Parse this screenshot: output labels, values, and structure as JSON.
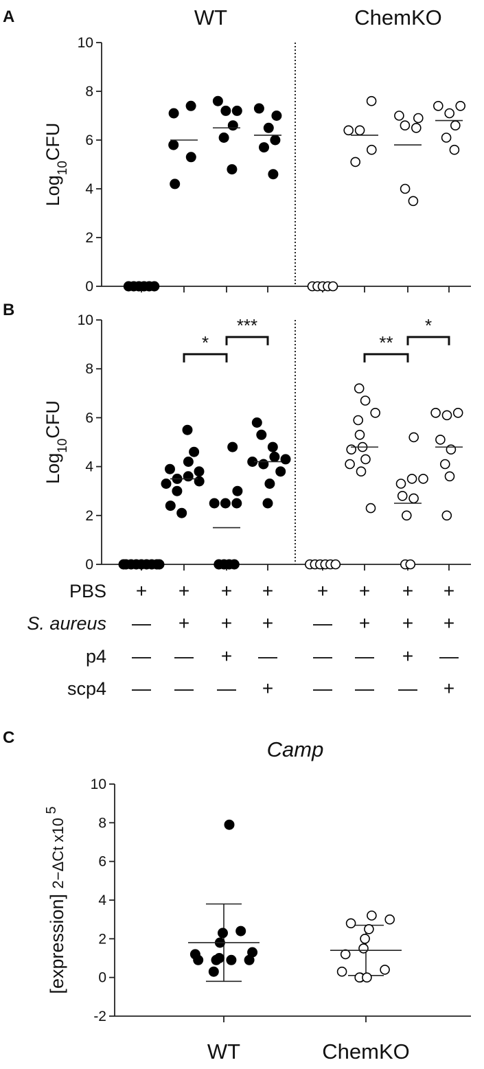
{
  "panels": {
    "A": "A",
    "B": "B",
    "C": "C"
  },
  "group_titles": [
    "WT",
    "ChemKO"
  ],
  "conditions": {
    "labels": [
      "PBS",
      "S. aureus",
      "p4",
      "scp4"
    ],
    "rows": [
      [
        "+",
        "+",
        "+",
        "+",
        "+",
        "+",
        "+",
        "+"
      ],
      [
        "—",
        "+",
        "+",
        "+",
        "—",
        "+",
        "+",
        "+"
      ],
      [
        "—",
        "—",
        "+",
        "—",
        "—",
        "—",
        "+",
        "—"
      ],
      [
        "—",
        "—",
        "—",
        "+",
        "—",
        "—",
        "—",
        "+"
      ]
    ]
  },
  "chart_data": [
    {
      "panel": "A",
      "type": "scatter",
      "ylabel": "Log10CFU",
      "ylim": [
        0,
        10
      ],
      "yticks": [
        0,
        2,
        4,
        6,
        8,
        10
      ],
      "groups": [
        "WT",
        "ChemKO"
      ],
      "series": [
        {
          "genotype": "WT",
          "marker": "filled",
          "points": [
            0,
            0,
            0,
            0,
            0,
            0
          ],
          "mean": 0
        },
        {
          "genotype": "WT",
          "marker": "filled",
          "points": [
            7.4,
            7.1,
            5.8,
            5.3,
            4.2
          ],
          "mean": 6.0
        },
        {
          "genotype": "WT",
          "marker": "filled",
          "points": [
            7.6,
            7.2,
            7.2,
            6.6,
            6.1,
            4.8
          ],
          "mean": 6.5
        },
        {
          "genotype": "WT",
          "marker": "filled",
          "points": [
            7.3,
            7.0,
            6.5,
            6.0,
            5.7,
            4.6
          ],
          "mean": 6.2
        },
        {
          "genotype": "ChemKO",
          "marker": "open",
          "points": [
            0,
            0,
            0,
            0,
            0
          ],
          "mean": 0
        },
        {
          "genotype": "ChemKO",
          "marker": "open",
          "points": [
            7.6,
            6.4,
            6.4,
            5.6,
            5.1
          ],
          "mean": 6.2
        },
        {
          "genotype": "ChemKO",
          "marker": "open",
          "points": [
            7.0,
            6.9,
            6.6,
            6.5,
            4.0,
            3.5
          ],
          "mean": 5.8
        },
        {
          "genotype": "ChemKO",
          "marker": "open",
          "points": [
            7.4,
            7.4,
            7.1,
            6.6,
            6.1,
            5.6
          ],
          "mean": 6.8
        }
      ]
    },
    {
      "panel": "B",
      "type": "scatter",
      "ylabel": "Log10CFU",
      "ylim": [
        0,
        10
      ],
      "yticks": [
        0,
        2,
        4,
        6,
        8,
        10
      ],
      "series": [
        {
          "genotype": "WT",
          "marker": "filled",
          "points": [
            0,
            0,
            0,
            0,
            0,
            0,
            0,
            0,
            0
          ],
          "mean": 0
        },
        {
          "genotype": "WT",
          "marker": "filled",
          "points": [
            5.5,
            4.6,
            4.2,
            3.9,
            3.8,
            3.6,
            3.5,
            3.4,
            3.3,
            3.0,
            2.4,
            2.1
          ],
          "mean": 3.5
        },
        {
          "genotype": "WT",
          "marker": "filled",
          "points": [
            4.8,
            3.0,
            2.5,
            2.5,
            2.5,
            0,
            0,
            0,
            0
          ],
          "mean": 1.5
        },
        {
          "genotype": "WT",
          "marker": "filled",
          "points": [
            5.8,
            5.3,
            4.8,
            4.4,
            4.3,
            4.2,
            4.1,
            3.8,
            3.3,
            2.5
          ],
          "mean": 4.2
        },
        {
          "genotype": "ChemKO",
          "marker": "open",
          "points": [
            0,
            0,
            0,
            0,
            0,
            0
          ],
          "mean": 0
        },
        {
          "genotype": "ChemKO",
          "marker": "open",
          "points": [
            7.2,
            6.7,
            6.2,
            5.9,
            5.3,
            4.8,
            4.7,
            4.3,
            4.1,
            3.8,
            2.3
          ],
          "mean": 4.8
        },
        {
          "genotype": "ChemKO",
          "marker": "open",
          "points": [
            5.2,
            3.5,
            3.5,
            3.3,
            2.8,
            2.7,
            2.0,
            0,
            0
          ],
          "mean": 2.5
        },
        {
          "genotype": "ChemKO",
          "marker": "open",
          "points": [
            6.2,
            6.2,
            6.1,
            5.1,
            4.7,
            4.1,
            3.6,
            2.0
          ],
          "mean": 4.8
        }
      ],
      "brackets": [
        {
          "from_group": 2,
          "to_group": 3,
          "label": "*"
        },
        {
          "from_group": 3,
          "to_group": 4,
          "label": "***"
        },
        {
          "from_group": 6,
          "to_group": 7,
          "label": "**"
        },
        {
          "from_group": 7,
          "to_group": 8,
          "label": "*"
        }
      ]
    },
    {
      "panel": "C",
      "type": "scatter",
      "title": "Camp",
      "ylabel": "[expression] 2−ΔCt x10⁵",
      "ylim": [
        -2,
        10
      ],
      "yticks": [
        -2,
        0,
        2,
        4,
        6,
        8,
        10
      ],
      "categories": [
        "WT",
        "ChemKO"
      ],
      "series": [
        {
          "genotype": "WT",
          "marker": "filled",
          "points": [
            7.9,
            2.4,
            2.3,
            1.8,
            1.3,
            1.2,
            1.0,
            0.9,
            0.9,
            0.9,
            0.9,
            0.3
          ],
          "mean": 1.8,
          "sd": 2.0
        },
        {
          "genotype": "ChemKO",
          "marker": "open",
          "points": [
            3.2,
            3.0,
            2.8,
            2.5,
            2.0,
            1.5,
            1.2,
            0.4,
            0.3,
            0.0,
            0.0,
            0.0
          ],
          "mean": 1.4,
          "sd": 1.3
        }
      ]
    }
  ]
}
